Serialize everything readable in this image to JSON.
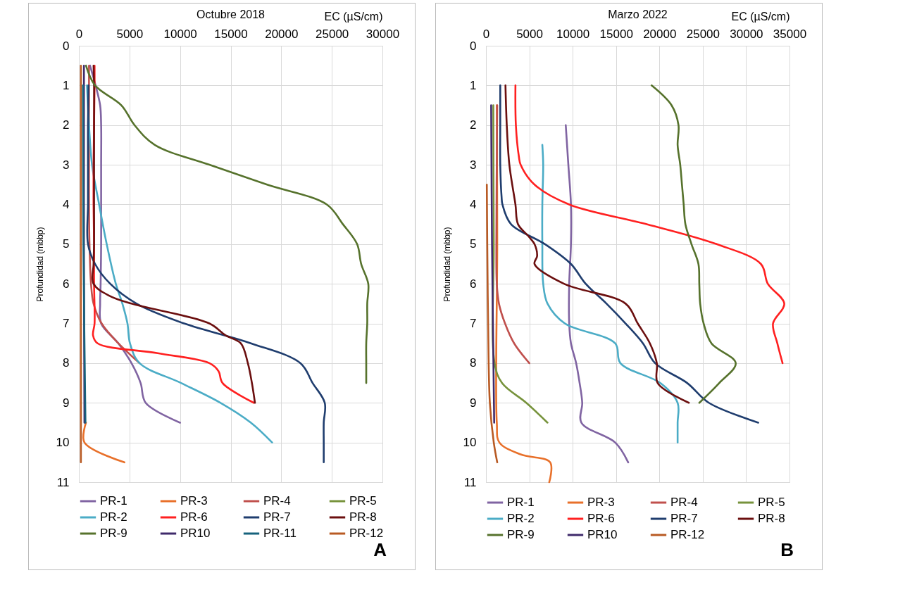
{
  "chart_data": [
    {
      "type": "line",
      "title": "Octubre 2018",
      "xlabel": "EC (µS/cm)",
      "ylabel": "Profundidad (mbbp)",
      "xlim": [
        0,
        30000
      ],
      "xticks": [
        0,
        5000,
        10000,
        15000,
        20000,
        25000,
        30000
      ],
      "ylim": [
        11,
        0
      ],
      "yticks": [
        0,
        1,
        2,
        3,
        4,
        5,
        6,
        7,
        8,
        9,
        10,
        11
      ],
      "grid": true,
      "legend": "bottom",
      "annotations": [
        "A"
      ],
      "series": [
        {
          "name": "PR-1",
          "color": "#8064a2",
          "x": [
            1100,
            1650,
            2100,
            2200,
            2200,
            2200,
            2200,
            2150,
            2100,
            2200,
            3900,
            5200,
            6100,
            6600,
            10000
          ],
          "values": [
            0.5,
            1,
            1.5,
            2,
            3,
            4,
            5,
            6,
            6.5,
            7,
            7.5,
            8,
            8.5,
            9,
            9.5
          ]
        },
        {
          "name": "PR-3",
          "color": "#e8702a",
          "x": [
            700,
            550,
            4500
          ],
          "values": [
            9.5,
            10,
            10.5
          ]
        },
        {
          "name": "PR-4",
          "color": "#c0504d",
          "x": [
            1000,
            1000,
            1000,
            1000,
            1000,
            1050,
            1200,
            1450,
            2250,
            3900,
            6000
          ],
          "values": [
            0.5,
            1,
            2,
            3,
            4,
            5,
            6,
            6.5,
            7,
            7.5,
            8
          ]
        },
        {
          "name": "PR-5",
          "color": "#77933c"
        },
        {
          "name": "PR-2",
          "color": "#4bacc6",
          "x": [
            800,
            1000,
            1300,
            2000,
            2750,
            3650,
            4300,
            4800,
            5050,
            6000,
            10100,
            14000,
            17000,
            19100
          ],
          "values": [
            1,
            2,
            3,
            4,
            5,
            6,
            6.5,
            7,
            7.5,
            8,
            8.5,
            9,
            9.5,
            10
          ]
        },
        {
          "name": "PR-6",
          "color": "#ff2020",
          "x": [
            1550,
            1550,
            1500,
            1450,
            1450,
            1500,
            1500,
            1550,
            1400,
            1850,
            7800,
            12900,
            13800,
            14200,
            17300
          ],
          "values": [
            0.5,
            1,
            2,
            3,
            4,
            5,
            6,
            7,
            7.3,
            7.5,
            7.75,
            8,
            8.2,
            8.5,
            9
          ]
        },
        {
          "name": "PR-7",
          "color": "#1f3d6e",
          "x": [
            950,
            900,
            900,
            900,
            900,
            1600,
            3100,
            5700,
            10400,
            17000,
            21900,
            23100,
            24300,
            24200,
            24200,
            24200
          ],
          "values": [
            1,
            2,
            3,
            4,
            5,
            5.5,
            6,
            6.5,
            7,
            7.5,
            8,
            8.5,
            9,
            9.5,
            10,
            10.5
          ]
        },
        {
          "name": "PR-8",
          "color": "#6b0f0f",
          "x": [
            1450,
            1500,
            1500,
            1500,
            1500,
            1500,
            1450,
            1450,
            3000,
            5200,
            12900,
            14500,
            16000,
            16700,
            17100,
            17400
          ],
          "values": [
            0.5,
            1,
            2,
            3,
            4,
            5,
            5.5,
            6,
            6.3,
            6.5,
            7,
            7.3,
            7.5,
            8,
            8.5,
            9
          ]
        },
        {
          "name": "PR-9",
          "color": "#56722c",
          "x": [
            700,
            1600,
            4200,
            5500,
            7500,
            12900,
            18600,
            24500,
            26100,
            27500,
            27900,
            28600,
            28500,
            28500,
            28400,
            28400,
            28400
          ],
          "values": [
            0.5,
            1,
            1.5,
            2,
            2.5,
            3,
            3.5,
            4,
            4.5,
            5,
            5.5,
            6,
            6.5,
            7,
            7.5,
            8,
            8.5
          ]
        },
        {
          "name": "PR10",
          "color": "#3f2a6b",
          "x": [
            500,
            500,
            500,
            550
          ],
          "values": [
            0.5,
            1,
            5,
            9.5
          ]
        },
        {
          "name": "PR-11",
          "color": "#16627c",
          "x": [
            400,
            450,
            650
          ],
          "values": [
            1,
            5,
            9.5
          ]
        },
        {
          "name": "PR-12",
          "color": "#b85a23",
          "x": [
            200,
            200,
            200,
            200,
            200
          ],
          "values": [
            0.5,
            3,
            6,
            9,
            10.5
          ]
        }
      ]
    },
    {
      "type": "line",
      "title": "Marzo 2022",
      "xlabel": "EC (µS/cm)",
      "ylabel": "Profundidad (mbbp)",
      "xlim": [
        0,
        35000
      ],
      "xticks": [
        0,
        5000,
        10000,
        15000,
        20000,
        25000,
        30000,
        35000
      ],
      "ylim": [
        11,
        0
      ],
      "yticks": [
        0,
        1,
        2,
        3,
        4,
        5,
        6,
        7,
        8,
        9,
        10,
        11
      ],
      "grid": true,
      "legend": "bottom",
      "annotations": [
        "B"
      ],
      "series": [
        {
          "name": "PR-1",
          "color": "#8064a2",
          "x": [
            9200,
            9500,
            9800,
            9800,
            9600,
            9600,
            9800,
            10400,
            10800,
            11100,
            11000,
            14900,
            16400
          ],
          "values": [
            2,
            3,
            4,
            5,
            6,
            7,
            7.5,
            8,
            8.5,
            9,
            9.5,
            10,
            10.5
          ]
        },
        {
          "name": "PR-3",
          "color": "#e8702a",
          "x": [
            1250,
            1300,
            1250,
            1550,
            4000,
            7400,
            7300
          ],
          "values": [
            1.5,
            5,
            9.5,
            10,
            10.3,
            10.5,
            11
          ]
        },
        {
          "name": "PR-4",
          "color": "#c0504d",
          "x": [
            1300,
            1200,
            1250,
            1500,
            2200,
            3250,
            5000
          ],
          "values": [
            1.5,
            5,
            6,
            6.5,
            7,
            7.5,
            8
          ]
        },
        {
          "name": "PR-5",
          "color": "#77933c",
          "x": [
            850,
            900,
            1000,
            1850,
            4650,
            7100
          ],
          "values": [
            1.5,
            5,
            8,
            8.5,
            9,
            9.5
          ]
        },
        {
          "name": "PR-2",
          "color": "#4bacc6",
          "x": [
            6500,
            6600,
            6500,
            6500,
            6600,
            7100,
            9100,
            14900,
            15500,
            20100,
            22100,
            22100,
            22100
          ],
          "values": [
            2.5,
            3,
            4,
            5,
            6,
            6.5,
            7,
            7.5,
            8,
            8.5,
            9,
            9.5,
            10
          ]
        },
        {
          "name": "PR-6",
          "color": "#ff2020",
          "x": [
            3400,
            3450,
            3800,
            4000,
            5600,
            9600,
            18600,
            26600,
            31700,
            32500,
            34400,
            33100,
            33600,
            34200
          ],
          "values": [
            1,
            2,
            2.8,
            3,
            3.5,
            4,
            4.5,
            5,
            5.5,
            6,
            6.5,
            7,
            7.5,
            8
          ]
        },
        {
          "name": "PR-7",
          "color": "#1f3d6e",
          "x": [
            1650,
            1650,
            1650,
            1800,
            1900,
            2900,
            6800,
            9800,
            11500,
            13900,
            16100,
            18100,
            19500,
            23200,
            25700,
            31400
          ],
          "values": [
            1,
            2,
            3,
            3.8,
            4,
            4.5,
            5,
            5.5,
            6,
            6.5,
            7,
            7.5,
            8,
            8.5,
            9,
            9.5
          ]
        },
        {
          "name": "PR-8",
          "color": "#6b0f0f",
          "x": [
            2250,
            2400,
            2700,
            3400,
            3700,
            4900,
            5600,
            5900,
            5600,
            9000,
            16100,
            17500,
            18900,
            19700,
            19800,
            23400
          ],
          "values": [
            1,
            2,
            3,
            4,
            4.5,
            4.8,
            5,
            5.3,
            5.5,
            6,
            6.5,
            7,
            7.5,
            8,
            8.5,
            9
          ]
        },
        {
          "name": "PR-9",
          "color": "#56722c",
          "x": [
            19100,
            21400,
            22200,
            22100,
            22400,
            22600,
            22800,
            23000,
            23700,
            24500,
            24600,
            24700,
            25100,
            26000,
            28800,
            26900,
            24600
          ],
          "values": [
            1,
            1.5,
            2,
            2.5,
            3,
            3.5,
            4,
            4.5,
            5,
            5.5,
            6,
            6.5,
            7,
            7.5,
            8,
            8.5,
            9
          ]
        },
        {
          "name": "PR10",
          "color": "#3f2a6b",
          "x": [
            600,
            700,
            950
          ],
          "values": [
            1.5,
            5,
            9.5
          ]
        },
        {
          "name": "PR-12",
          "color": "#b85a23",
          "x": [
            100,
            150,
            250,
            450,
            900,
            1300
          ],
          "values": [
            3.5,
            5,
            7,
            9,
            10,
            10.5
          ]
        }
      ]
    }
  ]
}
